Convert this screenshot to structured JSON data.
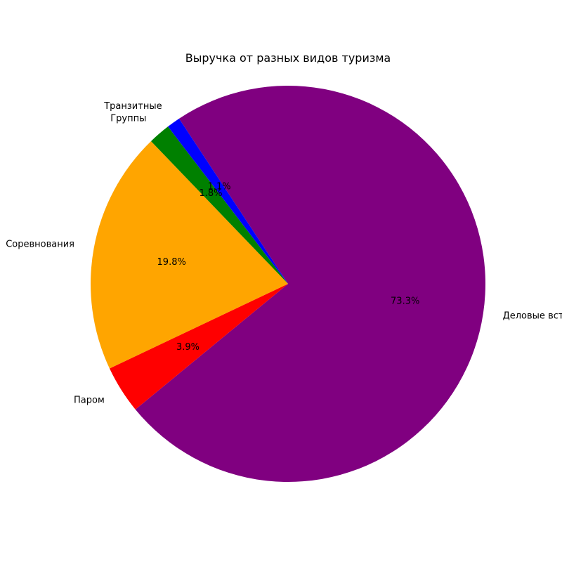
{
  "chart_data": {
    "type": "pie",
    "title": "Выручка от разных видов туризма",
    "slices": [
      {
        "label": "Деловые встречи",
        "percent_label": "73.3%",
        "value": 73.3,
        "color": "#800080"
      },
      {
        "label": "Паром",
        "percent_label": "3.9%",
        "value": 3.9,
        "color": "#ff0000"
      },
      {
        "label": "Соревнования",
        "percent_label": "19.8%",
        "value": 19.8,
        "color": "#ffa500"
      },
      {
        "label": "Группы",
        "percent_label": "1.8%",
        "value": 1.8,
        "color": "#008000"
      },
      {
        "label": "Транзитные",
        "percent_label": "1.1%",
        "value": 1.1,
        "color": "#0000ff"
      }
    ],
    "legend": "none"
  }
}
